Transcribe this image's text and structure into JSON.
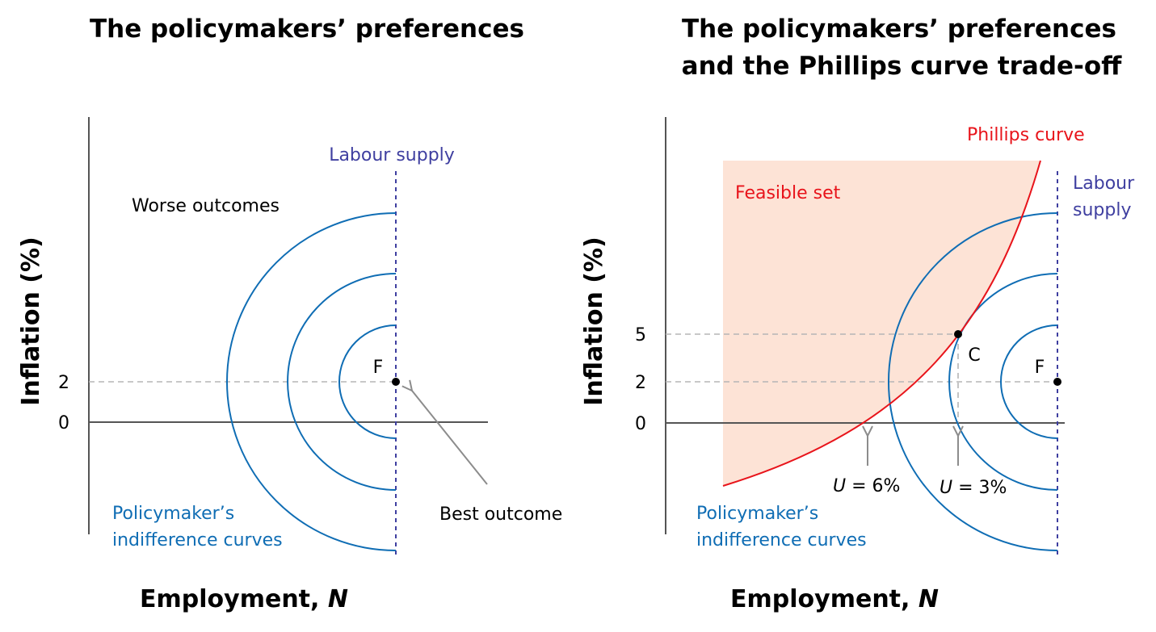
{
  "left_panel": {
    "title": "The policymakers’ preferences",
    "y_axis_label": "Inflation (%)",
    "x_axis_label_text": "Employment, ",
    "x_axis_label_var": "N",
    "y_ticks": [
      "2",
      "0"
    ],
    "labour_supply_label": "Labour supply",
    "worse_outcomes_label": "Worse outcomes",
    "best_outcome_label": "Best outcome",
    "point_label": "F",
    "indifference_label_line1": "Policymaker’s",
    "indifference_label_line2": "indifference curves"
  },
  "right_panel": {
    "title_line1": "The policymakers’ preferences",
    "title_line2": "and the Phillips curve trade-off",
    "y_axis_label": "Inflation (%)",
    "x_axis_label_text": "Employment, ",
    "x_axis_label_var": "N",
    "y_ticks": [
      "5",
      "2",
      "0"
    ],
    "phillips_curve_label": "Phillips curve",
    "feasible_set_label": "Feasible set",
    "labour_supply_label_line1": "Labour",
    "labour_supply_label_line2": "supply",
    "point_c_label": "C",
    "point_f_label": "F",
    "u6_var": "U",
    "u6_value": " = 6%",
    "u3_var": "U",
    "u3_value": " = 3%",
    "indifference_label_line1": "Policymaker’s",
    "indifference_label_line2": "indifference curves"
  },
  "colors": {
    "indifference_curve": "#0f6db4",
    "labour_supply": "#3f3fa0",
    "phillips_curve": "#e8141b",
    "feasible_set_fill": "#fde3d6",
    "axis": "#555555",
    "dashed_guide": "#b5b5b5",
    "arrow": "#8c8c8c"
  }
}
